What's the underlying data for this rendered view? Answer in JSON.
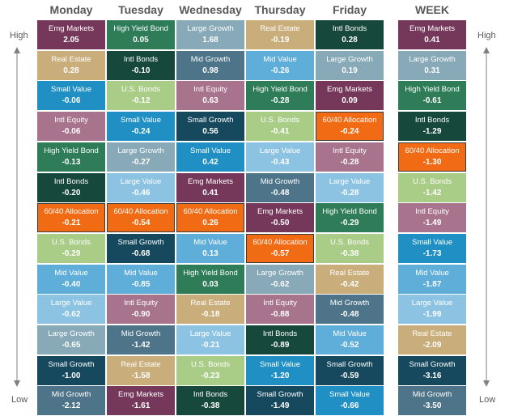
{
  "colors": {
    "Emg Markets": "#76385a",
    "Real Estate": "#c9ae7c",
    "Small Value": "#1f8fc4",
    "Intl Equity": "#a8738d",
    "High Yield Bond": "#2e7c58",
    "Intl Bonds": "#17483c",
    "60/40 Allocation": "#f06b14",
    "U.S. Bonds": "#a9cc86",
    "Mid Value": "#5fadd9",
    "Large Value": "#8dc3e2",
    "Large Growth": "#87a9b8",
    "Small Growth": "#16495e",
    "Mid Growth": "#4e7489"
  },
  "side_labels": {
    "high": "High",
    "low": "Low"
  },
  "chart_data": {
    "type": "table",
    "columns": [
      {
        "day": "Monday",
        "cells": [
          {
            "name": "Emg Markets",
            "value": "2.05"
          },
          {
            "name": "Real Estate",
            "value": "0.28"
          },
          {
            "name": "Small Value",
            "value": "-0.06"
          },
          {
            "name": "Intl Equity",
            "value": "-0.06"
          },
          {
            "name": "High Yield Bond",
            "value": "-0.13"
          },
          {
            "name": "Intl Bonds",
            "value": "-0.20"
          },
          {
            "name": "60/40 Allocation",
            "value": "-0.21"
          },
          {
            "name": "U.S. Bonds",
            "value": "-0.29"
          },
          {
            "name": "Mid Value",
            "value": "-0.40"
          },
          {
            "name": "Large Value",
            "value": "-0.62"
          },
          {
            "name": "Large Growth",
            "value": "-0.65"
          },
          {
            "name": "Small Growth",
            "value": "-1.00"
          },
          {
            "name": "Mid Growth",
            "value": "-2.12"
          }
        ]
      },
      {
        "day": "Tuesday",
        "cells": [
          {
            "name": "High Yield Bond",
            "value": "0.05"
          },
          {
            "name": "Intl Bonds",
            "value": "-0.10"
          },
          {
            "name": "U.S. Bonds",
            "value": "-0.12"
          },
          {
            "name": "Small Value",
            "value": "-0.24"
          },
          {
            "name": "Large Growth",
            "value": "-0.27"
          },
          {
            "name": "Large Value",
            "value": "-0.46"
          },
          {
            "name": "60/40 Allocation",
            "value": "-0.54"
          },
          {
            "name": "Small Growth",
            "value": "-0.68"
          },
          {
            "name": "Mid Value",
            "value": "-0.85"
          },
          {
            "name": "Intl Equity",
            "value": "-0.90"
          },
          {
            "name": "Mid Growth",
            "value": "-1.42"
          },
          {
            "name": "Real Estate",
            "value": "-1.58"
          },
          {
            "name": "Emg Markets",
            "value": "-1.61"
          }
        ]
      },
      {
        "day": "Wednesday",
        "cells": [
          {
            "name": "Large Growth",
            "value": "1.68"
          },
          {
            "name": "Mid Growth",
            "value": "0.98"
          },
          {
            "name": "Intl Equity",
            "value": "0.63"
          },
          {
            "name": "Small Growth",
            "value": "0.56"
          },
          {
            "name": "Small Value",
            "value": "0.42"
          },
          {
            "name": "Emg Markets",
            "value": "0.41"
          },
          {
            "name": "60/40 Allocation",
            "value": "0.26"
          },
          {
            "name": "Mid Value",
            "value": "0.13"
          },
          {
            "name": "High Yield Bond",
            "value": "0.03"
          },
          {
            "name": "Real Estate",
            "value": "-0.18"
          },
          {
            "name": "Large Value",
            "value": "-0.21"
          },
          {
            "name": "U.S. Bonds",
            "value": "-0.23"
          },
          {
            "name": "Intl Bonds",
            "value": "-0.38"
          }
        ]
      },
      {
        "day": "Thursday",
        "cells": [
          {
            "name": "Real Estate",
            "value": "-0.19"
          },
          {
            "name": "Mid Value",
            "value": "-0.26"
          },
          {
            "name": "High Yield Bond",
            "value": "-0.28"
          },
          {
            "name": "U.S. Bonds",
            "value": "-0.41"
          },
          {
            "name": "Large Value",
            "value": "-0.43"
          },
          {
            "name": "Mid Growth",
            "value": "-0.48"
          },
          {
            "name": "Emg Markets",
            "value": "-0.50"
          },
          {
            "name": "60/40 Allocation",
            "value": "-0.57"
          },
          {
            "name": "Large Growth",
            "value": "-0.62"
          },
          {
            "name": "Intl Equity",
            "value": "-0.88"
          },
          {
            "name": "Intl Bonds",
            "value": "-0.89"
          },
          {
            "name": "Small Value",
            "value": "-1.20"
          },
          {
            "name": "Small Growth",
            "value": "-1.49"
          }
        ]
      },
      {
        "day": "Friday",
        "cells": [
          {
            "name": "Intl Bonds",
            "value": "0.28"
          },
          {
            "name": "Large Growth",
            "value": "0.19"
          },
          {
            "name": "Emg Markets",
            "value": "0.09"
          },
          {
            "name": "60/40 Allocation",
            "value": "-0.24"
          },
          {
            "name": "Intl Equity",
            "value": "-0.28"
          },
          {
            "name": "Large Value",
            "value": "-0.28"
          },
          {
            "name": "High Yield Bond",
            "value": "-0.29"
          },
          {
            "name": "U.S. Bonds",
            "value": "-0.38"
          },
          {
            "name": "Real Estate",
            "value": "-0.42"
          },
          {
            "name": "Mid Growth",
            "value": "-0.48"
          },
          {
            "name": "Mid Value",
            "value": "-0.52"
          },
          {
            "name": "Small Growth",
            "value": "-0.59"
          },
          {
            "name": "Small Value",
            "value": "-0.66"
          }
        ]
      },
      {
        "day": "WEEK",
        "cells": [
          {
            "name": "Emg Markets",
            "value": "0.41"
          },
          {
            "name": "Large Growth",
            "value": "0.31"
          },
          {
            "name": "High Yield Bond",
            "value": "-0.61"
          },
          {
            "name": "Intl Bonds",
            "value": "-1.29"
          },
          {
            "name": "60/40 Allocation",
            "value": "-1.30"
          },
          {
            "name": "U.S. Bonds",
            "value": "-1.42"
          },
          {
            "name": "Intl Equity",
            "value": "-1.49"
          },
          {
            "name": "Small Value",
            "value": "-1.73"
          },
          {
            "name": "Mid Value",
            "value": "-1.87"
          },
          {
            "name": "Large Value",
            "value": "-1.99"
          },
          {
            "name": "Real Estate",
            "value": "-2.09"
          },
          {
            "name": "Small Growth",
            "value": "-3.16"
          },
          {
            "name": "Mid Growth",
            "value": "-3.50"
          }
        ]
      }
    ]
  }
}
